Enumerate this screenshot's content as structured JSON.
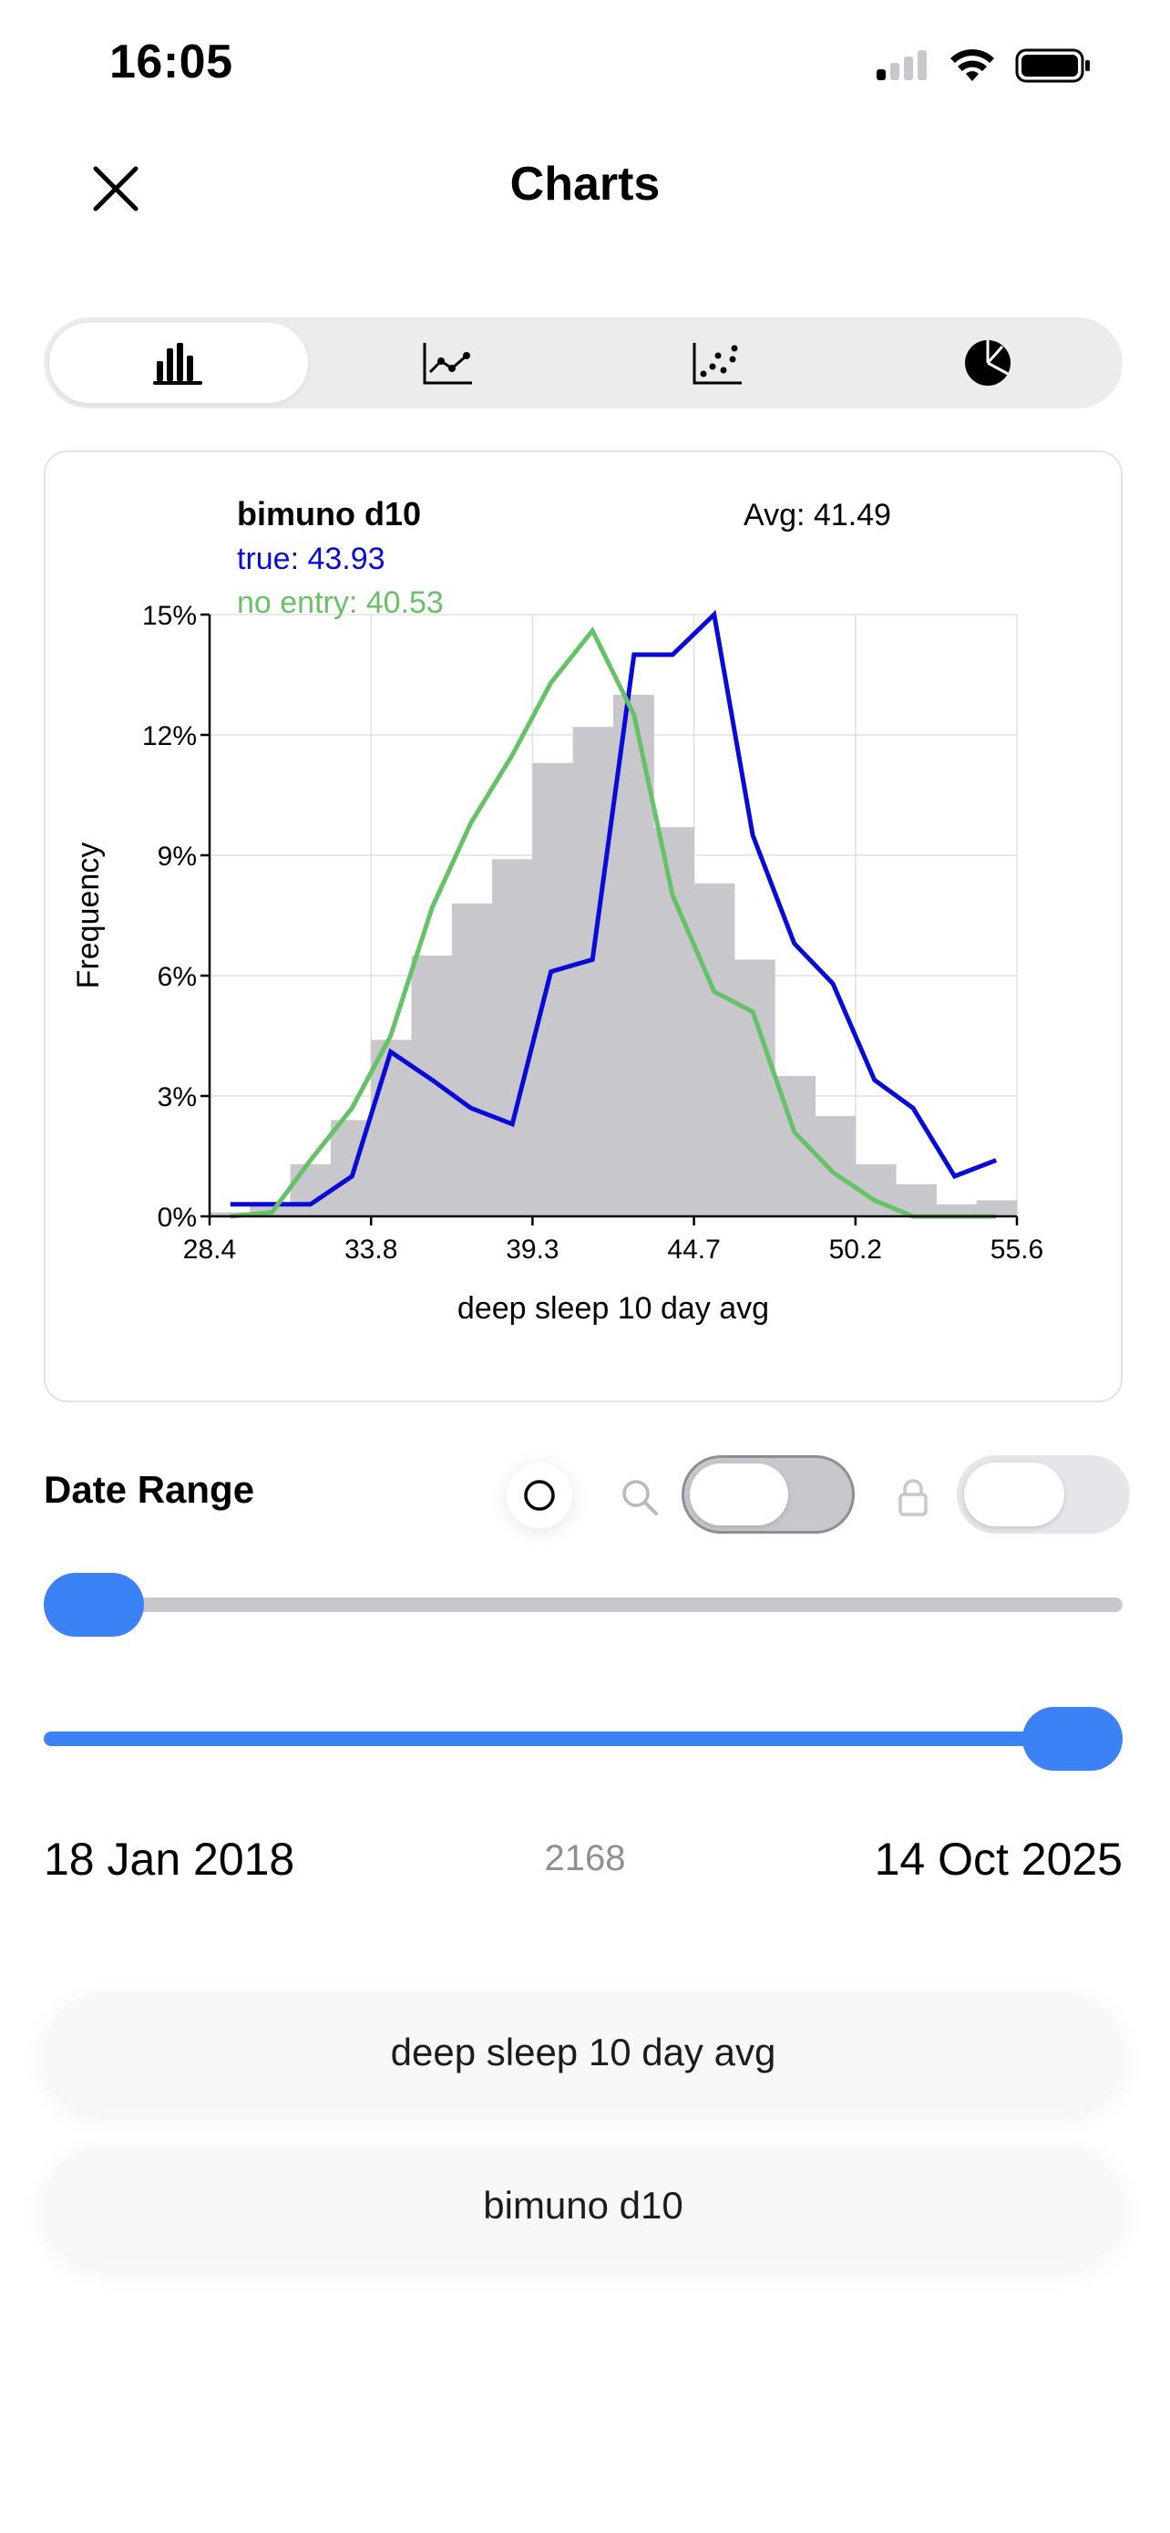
{
  "status_bar": {
    "time": "16:05"
  },
  "nav": {
    "title": "Charts"
  },
  "tabs": [
    {
      "icon": "bar-chart-icon",
      "active": true
    },
    {
      "icon": "line-chart-icon",
      "active": false
    },
    {
      "icon": "scatter-chart-icon",
      "active": false
    },
    {
      "icon": "pie-chart-icon",
      "active": false
    }
  ],
  "chart_data": {
    "type": "bar",
    "title": "bimuno d10",
    "average_label": "Avg: 41.49",
    "legend": [
      {
        "text": "true: 43.93",
        "color": "#0a0ad8"
      },
      {
        "text": "no entry: 40.53",
        "color": "#66c266"
      }
    ],
    "xlabel": "deep sleep 10 day avg",
    "ylabel": "Frequency",
    "xlim": [
      28.4,
      55.6
    ],
    "ylim": [
      0,
      15
    ],
    "x_ticks": [
      "28.4",
      "33.8",
      "39.3",
      "44.7",
      "50.2",
      "55.6"
    ],
    "y_ticks": [
      "0%",
      "3%",
      "6%",
      "9%",
      "12%",
      "15%"
    ],
    "grid": true,
    "bin_width": 1.36,
    "bins_start": 28.4,
    "histogram_values": [
      0.1,
      0.3,
      1.3,
      2.4,
      4.4,
      6.5,
      7.8,
      8.9,
      11.3,
      12.2,
      13.0,
      9.7,
      8.3,
      6.4,
      3.5,
      2.5,
      1.3,
      0.8,
      0.3,
      0.4
    ],
    "histogram_color": "#c7c7cc",
    "series": [
      {
        "name": "true: 43.93",
        "color": "#0a0ad8",
        "x": [
          29.1,
          30.5,
          31.8,
          33.2,
          34.5,
          35.9,
          37.2,
          38.6,
          39.9,
          41.3,
          42.7,
          44.0,
          45.4,
          46.7,
          48.1,
          49.4,
          50.8,
          52.1,
          53.5,
          54.9
        ],
        "y": [
          0.3,
          0.3,
          0.3,
          1.0,
          4.1,
          3.4,
          2.7,
          2.3,
          6.1,
          6.4,
          14.0,
          14.0,
          15.0,
          9.5,
          6.8,
          5.8,
          3.4,
          2.7,
          1.0,
          1.4
        ]
      },
      {
        "name": "no entry: 40.53",
        "color": "#66c266",
        "x": [
          29.1,
          30.5,
          31.8,
          33.2,
          34.5,
          35.9,
          37.2,
          38.6,
          39.9,
          41.3,
          42.7,
          44.0,
          45.4,
          46.7,
          48.1,
          49.4,
          50.8,
          52.1,
          53.5,
          54.9
        ],
        "y": [
          0.0,
          0.1,
          1.4,
          2.7,
          4.5,
          7.7,
          9.8,
          11.5,
          13.3,
          14.6,
          12.5,
          8.0,
          5.6,
          5.1,
          2.1,
          1.1,
          0.4,
          0.0,
          0.0,
          0.0
        ]
      }
    ]
  },
  "date_range": {
    "label": "Date Range",
    "start_date": "18 Jan 2018",
    "end_date": "14 Oct 2025",
    "count": "2168",
    "start_slider_fraction": 0.0,
    "end_slider_fraction": 1.0,
    "search_toggle_on": false,
    "lock_toggle_on": false
  },
  "selectors": {
    "x_variable": "deep sleep 10 day avg",
    "group_variable": "bimuno d10"
  },
  "colors": {
    "accent": "#3b82f6"
  }
}
